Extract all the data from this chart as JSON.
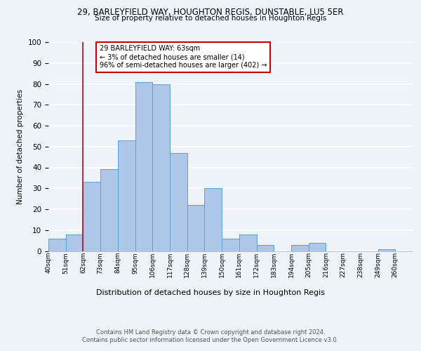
{
  "title1": "29, BARLEYFIELD WAY, HOUGHTON REGIS, DUNSTABLE, LU5 5ER",
  "title2": "Size of property relative to detached houses in Houghton Regis",
  "xlabel": "Distribution of detached houses by size in Houghton Regis",
  "ylabel": "Number of detached properties",
  "bin_labels": [
    "40sqm",
    "51sqm",
    "62sqm",
    "73sqm",
    "84sqm",
    "95sqm",
    "106sqm",
    "117sqm",
    "128sqm",
    "139sqm",
    "150sqm",
    "161sqm",
    "172sqm",
    "183sqm",
    "194sqm",
    "205sqm",
    "216sqm",
    "227sqm",
    "238sqm",
    "249sqm",
    "260sqm"
  ],
  "bar_heights": [
    6,
    8,
    33,
    39,
    53,
    81,
    80,
    47,
    22,
    30,
    6,
    8,
    3,
    0,
    3,
    4,
    0,
    0,
    0,
    1,
    0
  ],
  "bar_color": "#aec6e8",
  "bar_edge_color": "#5a9fd4",
  "marker_line_color": "#cc0000",
  "ylim": [
    0,
    100
  ],
  "yticks": [
    0,
    10,
    20,
    30,
    40,
    50,
    60,
    70,
    80,
    90,
    100
  ],
  "annotation_title": "29 BARLEYFIELD WAY: 63sqm",
  "annotation_line1": "← 3% of detached houses are smaller (14)",
  "annotation_line2": "96% of semi-detached houses are larger (402) →",
  "annotation_box_color": "#ffffff",
  "annotation_box_edge": "#cc0000",
  "footer1": "Contains HM Land Registry data © Crown copyright and database right 2024.",
  "footer2": "Contains public sector information licensed under the Open Government Licence v3.0.",
  "background_color": "#eef2f9",
  "grid_color": "#ffffff"
}
